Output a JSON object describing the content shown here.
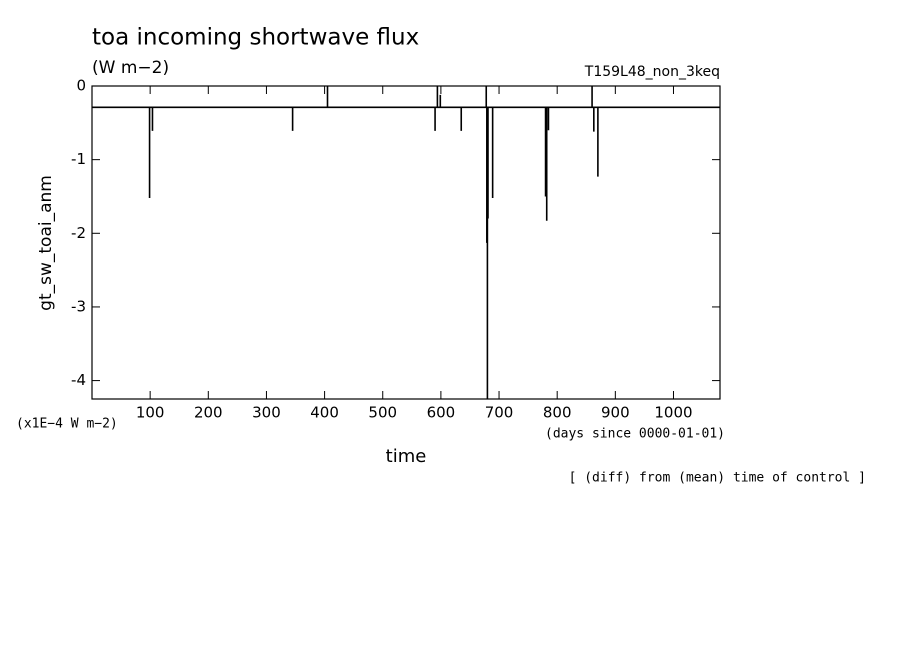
{
  "chart_data": {
    "type": "line",
    "title": "toa incoming shortwave flux",
    "subtitle": "(W m−2)",
    "run_label": "T159L48_non_3keq",
    "y_label": "gt_sw_toai_anm",
    "y_unit_label": "(x1E−4 W m−2)",
    "x_unit_label": "(days since 0000-01-01)",
    "x_label": "time",
    "note": "[ (diff) from (mean) time of control ]",
    "xlim": [
      0,
      1080
    ],
    "ylim": [
      -4.25,
      0
    ],
    "xticks": [
      100,
      200,
      300,
      400,
      500,
      600,
      700,
      800,
      900,
      1000
    ],
    "yticks": [
      0,
      -1,
      -2,
      -3,
      -4
    ],
    "series": [
      {
        "name": "gt_sw_toai_anm",
        "color": "#000000",
        "x": [
          0,
          99,
          99,
          99,
          104,
          104,
          104,
          345,
          345,
          345,
          405,
          405,
          405,
          590,
          590,
          590,
          594,
          594,
          594,
          599,
          599,
          599,
          635,
          635,
          635,
          678,
          678,
          678,
          679,
          679,
          680,
          680,
          680,
          681,
          681,
          681,
          689,
          689,
          689,
          780,
          780,
          780,
          782,
          782,
          782,
          785,
          785,
          785,
          860,
          860,
          860,
          863,
          863,
          863,
          870,
          870,
          870,
          1080
        ],
        "values": [
          -0.29,
          -0.29,
          -1.52,
          -0.29,
          -0.29,
          -0.61,
          -0.29,
          -0.29,
          -0.61,
          -0.29,
          -0.29,
          0,
          -0.29,
          -0.29,
          -0.61,
          -0.29,
          -0.29,
          0,
          -0.29,
          -0.29,
          -0.12,
          -0.29,
          -0.29,
          -0.61,
          -0.29,
          -0.29,
          0,
          -0.29,
          -0.29,
          -2.13,
          -0.29,
          -4.25,
          -0.29,
          -0.29,
          -1.8,
          -0.29,
          -0.29,
          -1.52,
          -0.29,
          -0.29,
          -1.5,
          -0.29,
          -0.29,
          -1.83,
          -0.29,
          -0.29,
          -0.6,
          -0.29,
          -0.29,
          0,
          -0.29,
          -0.29,
          -0.62,
          -0.29,
          -0.29,
          -1.23,
          -0.29,
          -0.29
        ]
      }
    ]
  }
}
